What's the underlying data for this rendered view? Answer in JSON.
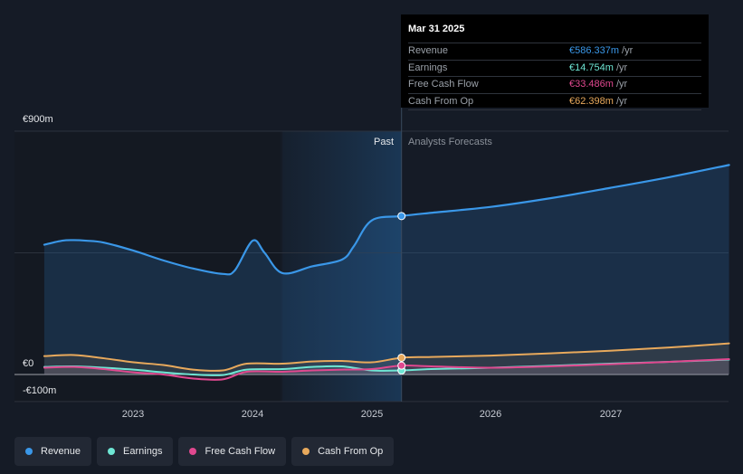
{
  "tooltip": {
    "date": "Mar 31 2025",
    "rows": [
      {
        "label": "Revenue",
        "value": "€586.337m",
        "unit": "/yr",
        "color": "#3a97e8"
      },
      {
        "label": "Earnings",
        "value": "€14.754m",
        "unit": "/yr",
        "color": "#6ee6d4"
      },
      {
        "label": "Free Cash Flow",
        "value": "€33.486m",
        "unit": "/yr",
        "color": "#e0488f"
      },
      {
        "label": "Cash From Op",
        "value": "€62.398m",
        "unit": "/yr",
        "color": "#e8a95c"
      }
    ]
  },
  "regions": {
    "past": "Past",
    "forecast": "Analysts Forecasts"
  },
  "chart_data": {
    "type": "area",
    "ylabels": [
      "€900m",
      "€0",
      "-€100m"
    ],
    "ylim": [
      -100,
      900
    ],
    "xticks": [
      "2023",
      "2024",
      "2025",
      "2026",
      "2027"
    ],
    "x_range": [
      2022.25,
      2028.0
    ],
    "past_range": [
      2024.25,
      2025.25
    ],
    "divider_x": 2025.25,
    "series": [
      {
        "name": "Revenue",
        "color": "#3a97e8",
        "x": [
          2022.25,
          2022.4,
          2022.5,
          2022.6,
          2022.75,
          2023.0,
          2023.25,
          2023.5,
          2023.75,
          2023.85,
          2024.0,
          2024.1,
          2024.25,
          2024.5,
          2024.75,
          2024.85,
          2025.0,
          2025.25,
          2025.5,
          2026.0,
          2026.5,
          2027.0,
          2027.5,
          2028.0
        ],
        "y": [
          480,
          495,
          497,
          495,
          488,
          458,
          422,
          392,
          372,
          385,
          495,
          450,
          375,
          400,
          425,
          475,
          570,
          586,
          598,
          620,
          652,
          690,
          730,
          775
        ]
      },
      {
        "name": "Earnings",
        "color": "#6ee6d4",
        "x": [
          2022.25,
          2022.5,
          2022.75,
          2023.0,
          2023.25,
          2023.5,
          2023.75,
          2023.95,
          2024.25,
          2024.5,
          2024.75,
          2025.0,
          2025.25,
          2025.5,
          2026.0,
          2026.5,
          2027.0,
          2027.5,
          2028.0
        ],
        "y": [
          28,
          30,
          25,
          18,
          8,
          0,
          -2,
          18,
          20,
          28,
          30,
          15,
          15,
          20,
          25,
          32,
          40,
          47,
          55
        ]
      },
      {
        "name": "Free Cash Flow",
        "color": "#e0488f",
        "x": [
          2022.25,
          2022.5,
          2022.75,
          2023.0,
          2023.25,
          2023.5,
          2023.75,
          2023.95,
          2024.25,
          2024.5,
          2024.75,
          2025.0,
          2025.25,
          2025.5,
          2026.0,
          2026.5,
          2027.0,
          2027.5,
          2028.0
        ],
        "y": [
          25,
          28,
          20,
          8,
          0,
          -15,
          -18,
          10,
          10,
          15,
          18,
          20,
          33,
          30,
          25,
          30,
          38,
          47,
          57
        ]
      },
      {
        "name": "Cash From Op",
        "color": "#e8a95c",
        "x": [
          2022.25,
          2022.5,
          2022.75,
          2023.0,
          2023.25,
          2023.5,
          2023.75,
          2023.95,
          2024.25,
          2024.5,
          2024.75,
          2025.0,
          2025.25,
          2025.5,
          2026.0,
          2026.5,
          2027.0,
          2027.5,
          2028.0
        ],
        "y": [
          68,
          72,
          60,
          45,
          35,
          18,
          15,
          40,
          40,
          48,
          50,
          45,
          62,
          65,
          70,
          78,
          88,
          100,
          115
        ]
      }
    ]
  },
  "legend": [
    {
      "label": "Revenue",
      "color": "#3a97e8"
    },
    {
      "label": "Earnings",
      "color": "#6ee6d4"
    },
    {
      "label": "Free Cash Flow",
      "color": "#e0488f"
    },
    {
      "label": "Cash From Op",
      "color": "#e8a95c"
    }
  ]
}
